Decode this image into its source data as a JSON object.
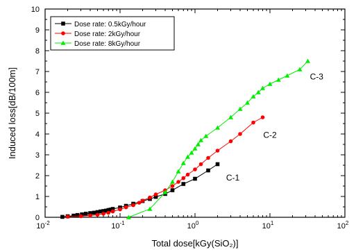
{
  "chart_data": {
    "type": "line",
    "xlabel": "Total dose[kGy(SiO₂)]",
    "ylabel": "Induced loss[dB/100m]",
    "xscale": "log",
    "xlim": [
      0.01,
      100
    ],
    "ylim": [
      0,
      10
    ],
    "x_tick_labels": [
      {
        "value": 0.01,
        "base": "10",
        "exp": "-2"
      },
      {
        "value": 0.1,
        "base": "10",
        "exp": "-1"
      },
      {
        "value": 1,
        "base": "10",
        "exp": "0"
      },
      {
        "value": 10,
        "base": "10",
        "exp": "1"
      },
      {
        "value": 100,
        "base": "10",
        "exp": "2"
      }
    ],
    "y_ticks": [
      0,
      1,
      2,
      3,
      4,
      5,
      6,
      7,
      8,
      9,
      10
    ],
    "grid": false,
    "legend_position": "top-left",
    "series": [
      {
        "name": "Dose rate: 0.5kGy/hour",
        "color": "#000000",
        "marker": "square",
        "x": [
          0.017,
          0.02,
          0.024,
          0.027,
          0.031,
          0.035,
          0.04,
          0.045,
          0.05,
          0.055,
          0.06,
          0.065,
          0.07,
          0.075,
          0.08,
          0.1,
          0.12,
          0.15,
          0.2,
          0.25,
          0.3,
          0.4,
          0.5,
          0.7,
          1.0,
          1.5,
          2.0
        ],
        "y": [
          0.02,
          0.05,
          0.08,
          0.11,
          0.14,
          0.17,
          0.2,
          0.22,
          0.25,
          0.28,
          0.3,
          0.32,
          0.35,
          0.37,
          0.4,
          0.47,
          0.55,
          0.65,
          0.78,
          0.88,
          0.98,
          1.12,
          1.3,
          1.6,
          1.85,
          2.25,
          2.55
        ]
      },
      {
        "name": "Dose rate: 2kGy/hour",
        "color": "#ff0000",
        "marker": "circle",
        "x": [
          0.02,
          0.03,
          0.04,
          0.05,
          0.06,
          0.07,
          0.08,
          0.1,
          0.12,
          0.15,
          0.18,
          0.2,
          0.25,
          0.3,
          0.4,
          0.5,
          0.6,
          0.7,
          0.8,
          1.0,
          1.2,
          1.5,
          2.0,
          3.0,
          4.0,
          6.0,
          8.0
        ],
        "y": [
          0.03,
          0.05,
          0.08,
          0.12,
          0.17,
          0.22,
          0.28,
          0.38,
          0.48,
          0.58,
          0.7,
          0.8,
          0.95,
          1.1,
          1.3,
          1.5,
          1.7,
          1.88,
          2.05,
          2.3,
          2.55,
          2.85,
          3.2,
          3.65,
          4.0,
          4.55,
          4.8
        ]
      },
      {
        "name": "Dose rate: 8kGy/hour",
        "color": "#00ee00",
        "marker": "triangle",
        "x": [
          0.13,
          0.25,
          0.4,
          0.5,
          0.6,
          0.7,
          0.8,
          0.9,
          1.0,
          1.1,
          1.2,
          1.4,
          2.0,
          3.0,
          4.0,
          5.0,
          6.0,
          7.0,
          8.0,
          10.0,
          13.0,
          17.0,
          25.0,
          32.0
        ],
        "y": [
          0.0,
          0.4,
          1.2,
          1.7,
          2.2,
          2.6,
          2.9,
          3.1,
          3.3,
          3.5,
          3.7,
          3.9,
          4.3,
          4.8,
          5.2,
          5.5,
          5.8,
          6.0,
          6.2,
          6.4,
          6.6,
          6.8,
          7.1,
          7.5
        ]
      }
    ],
    "annotations": [
      {
        "text": "C-1",
        "x": 3.2,
        "y": 1.9
      },
      {
        "text": "C-2",
        "x": 10.0,
        "y": 3.95
      },
      {
        "text": "C-3",
        "x": 42.0,
        "y": 6.75
      }
    ]
  }
}
